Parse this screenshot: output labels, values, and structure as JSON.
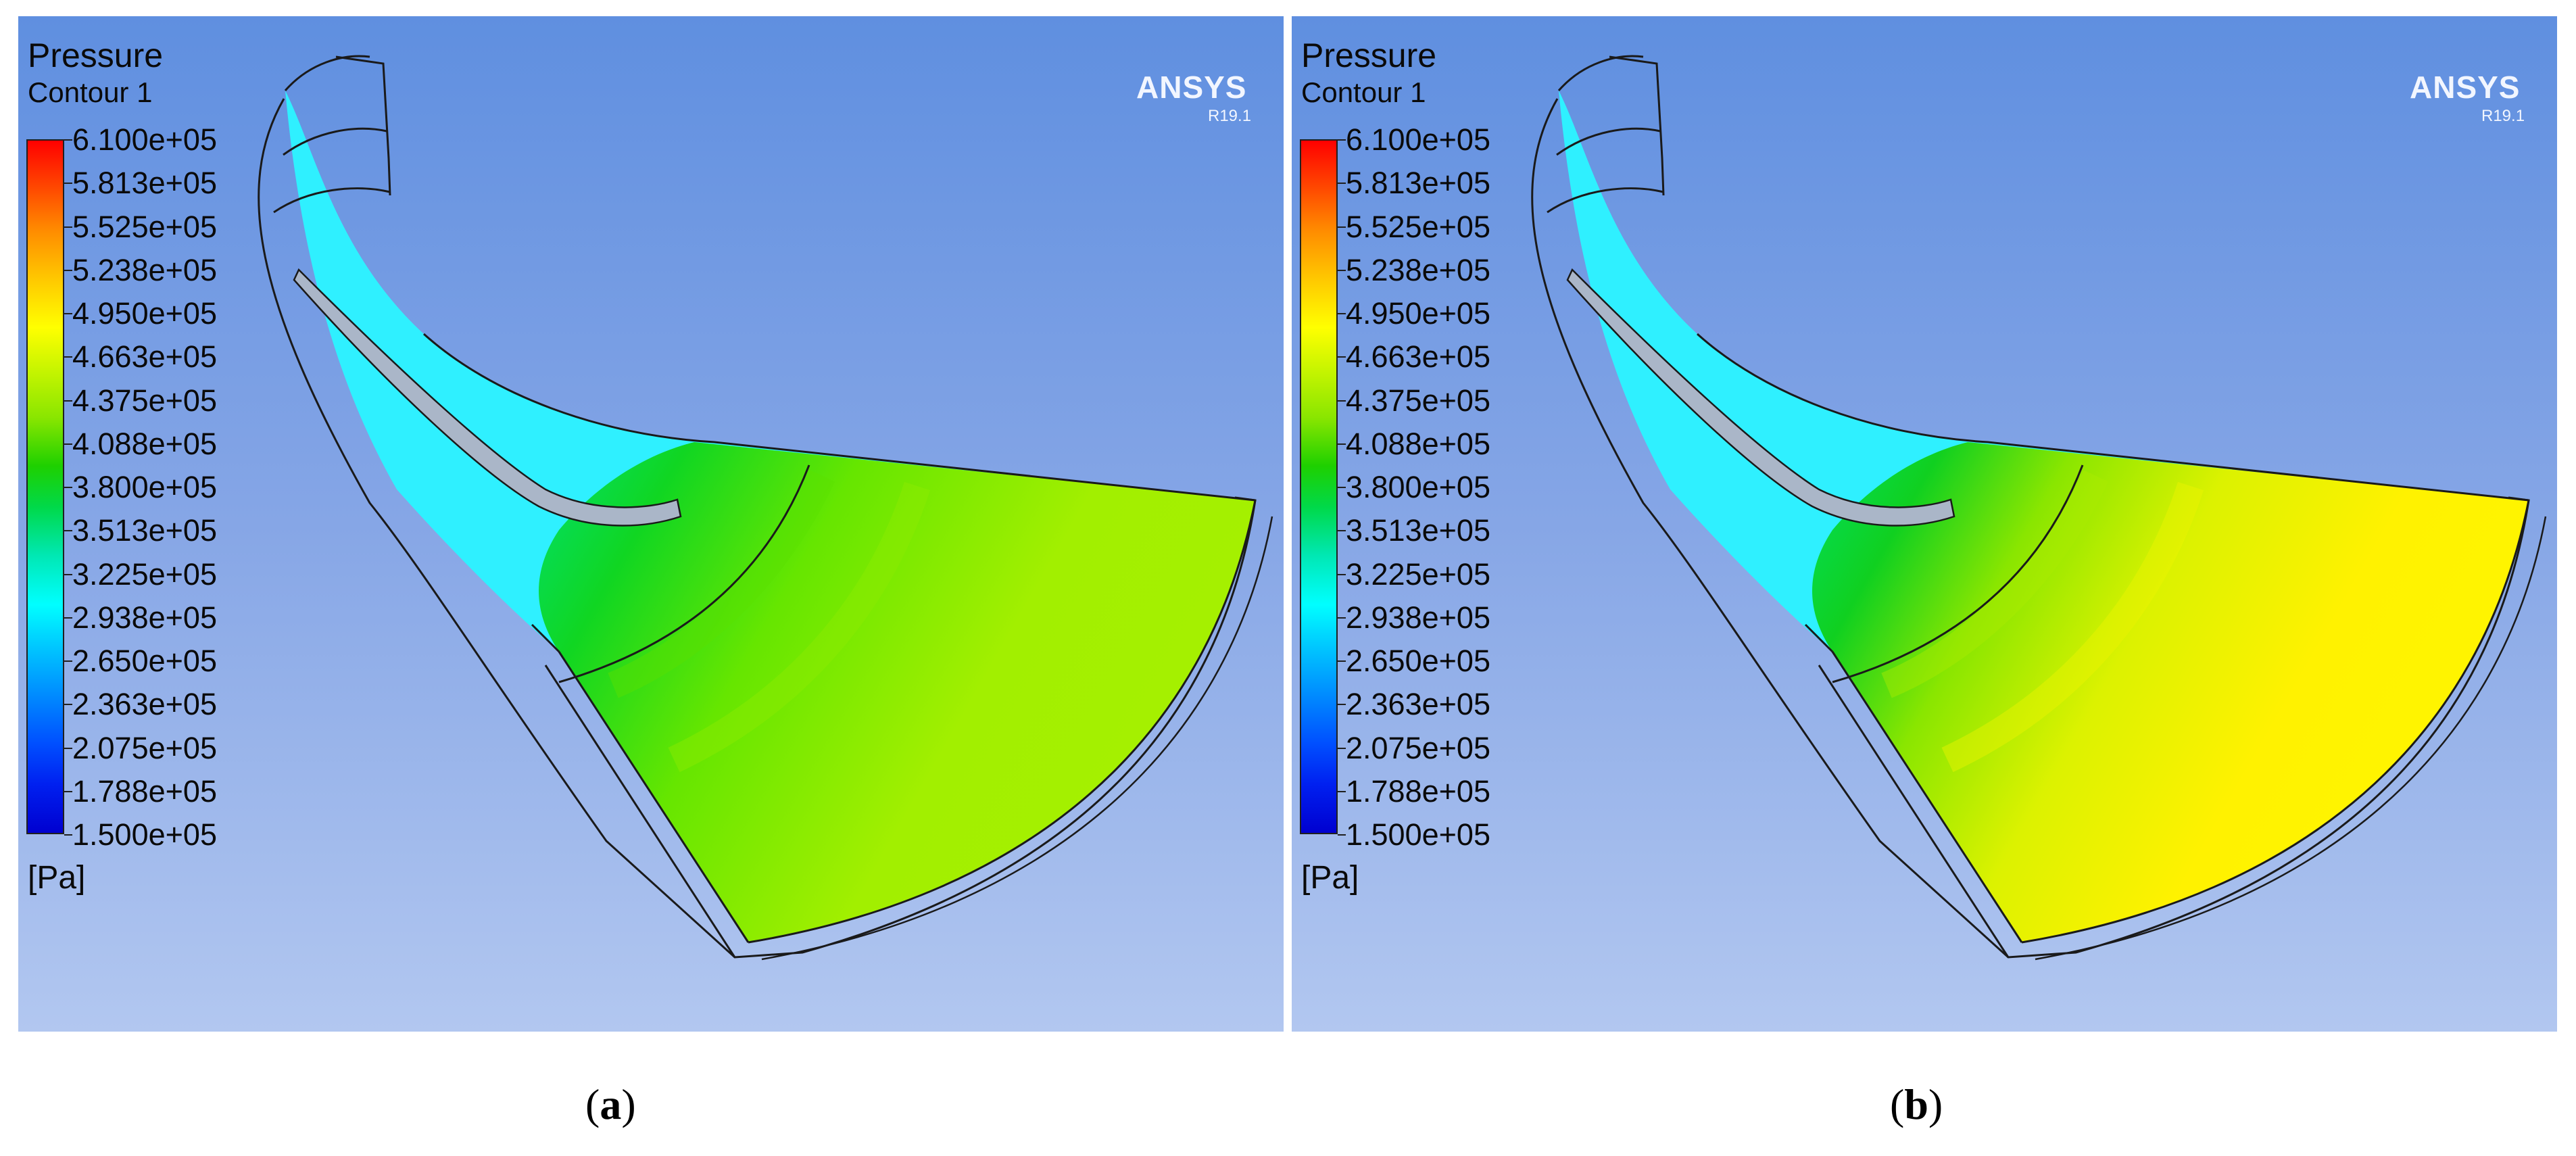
{
  "panels": [
    {
      "title": "Pressure",
      "subtitle": "Contour 1",
      "unit": "[Pa]",
      "brand": "ANSYS",
      "version": "R19.1",
      "caption_letter": "a",
      "colors": {
        "inlet": "#2ff0ff",
        "mid": "#1fd61f",
        "outer": "#a6f000",
        "fade": "#57e3c8"
      }
    },
    {
      "title": "Pressure",
      "subtitle": "Contour 1",
      "unit": "[Pa]",
      "brand": "ANSYS",
      "version": "R19.1",
      "caption_letter": "b",
      "colors": {
        "inlet": "#2ff0ff",
        "mid": "#10d020",
        "outer": "#fff200",
        "fade": "#57e3c8"
      }
    }
  ],
  "colorbar": {
    "labels": [
      "6.100e+05",
      "5.813e+05",
      "5.525e+05",
      "5.238e+05",
      "4.950e+05",
      "4.663e+05",
      "4.375e+05",
      "4.088e+05",
      "3.800e+05",
      "3.513e+05",
      "3.225e+05",
      "2.938e+05",
      "2.650e+05",
      "2.363e+05",
      "2.075e+05",
      "1.788e+05",
      "1.500e+05"
    ]
  },
  "caption": {
    "open": "(",
    "close": ")"
  }
}
